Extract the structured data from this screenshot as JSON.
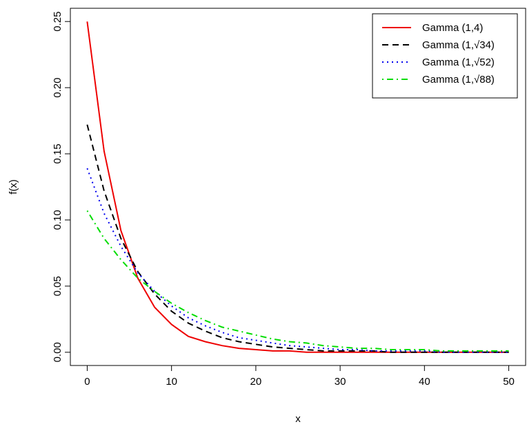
{
  "chart_data": {
    "type": "line",
    "xlabel": "x",
    "ylabel": "f(x)",
    "x": [
      0,
      2,
      4,
      6,
      8,
      10,
      12,
      14,
      16,
      18,
      20,
      22,
      24,
      26,
      28,
      30,
      32,
      34,
      36,
      38,
      40,
      42,
      44,
      46,
      48,
      50
    ],
    "series": [
      {
        "name": "Gamma (1,4)",
        "color": "#ee0000",
        "linestyle": "solid",
        "values": [
          0.25,
          0.152,
          0.092,
          0.056,
          0.034,
          0.021,
          0.012,
          0.008,
          0.005,
          0.003,
          0.002,
          0.001,
          0.001,
          0,
          0,
          0,
          0,
          0,
          0,
          0,
          0,
          0,
          0,
          0,
          0,
          0
        ]
      },
      {
        "name": "Gamma (1,√34)",
        "color": "#000000",
        "linestyle": "dashed",
        "values": [
          0.172,
          0.122,
          0.086,
          0.061,
          0.044,
          0.031,
          0.022,
          0.016,
          0.011,
          0.008,
          0.006,
          0.004,
          0.003,
          0.002,
          0.001,
          0.001,
          0.001,
          0.001,
          0,
          0,
          0,
          0,
          0,
          0,
          0,
          0
        ]
      },
      {
        "name": "Gamma (1,√52)",
        "color": "#0000ee",
        "linestyle": "dotted",
        "values": [
          0.139,
          0.105,
          0.08,
          0.06,
          0.046,
          0.035,
          0.026,
          0.02,
          0.015,
          0.011,
          0.009,
          0.007,
          0.005,
          0.004,
          0.003,
          0.002,
          0.002,
          0.001,
          0.001,
          0.001,
          0.001,
          0,
          0,
          0,
          0,
          0
        ]
      },
      {
        "name": "Gamma (1,√88)",
        "color": "#00dd00",
        "linestyle": "dotdash",
        "values": [
          0.107,
          0.086,
          0.07,
          0.056,
          0.046,
          0.037,
          0.03,
          0.024,
          0.019,
          0.016,
          0.013,
          0.01,
          0.008,
          0.007,
          0.005,
          0.004,
          0.003,
          0.003,
          0.002,
          0.002,
          0.002,
          0.001,
          0.001,
          0.001,
          0.001,
          0.001
        ]
      }
    ],
    "xlim": [
      -2,
      52
    ],
    "ylim": [
      -0.01,
      0.26
    ],
    "xticks": [
      0,
      10,
      20,
      30,
      40,
      50
    ],
    "yticks": [
      {
        "value": 0,
        "label": "0.00"
      },
      0.05,
      {
        "value": 0.1,
        "label": "0.10"
      },
      0.15,
      {
        "value": 0.2,
        "label": "0.20"
      },
      0.25
    ],
    "legend": "topright",
    "grid": false
  }
}
